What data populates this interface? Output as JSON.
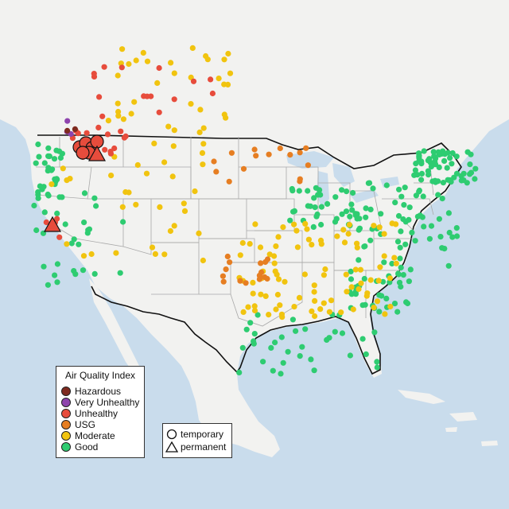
{
  "legend": {
    "title": "Air Quality Index",
    "categories": [
      {
        "label": "Hazardous",
        "color": "#7e2a1f"
      },
      {
        "label": "Very Unhealthy",
        "color": "#8e44ad"
      },
      {
        "label": "Unhealthy",
        "color": "#e74c3c"
      },
      {
        "label": "USG",
        "color": "#e67e22"
      },
      {
        "label": "Moderate",
        "color": "#f1c40f"
      },
      {
        "label": "Good",
        "color": "#2ecc71"
      }
    ]
  },
  "shape_legend": {
    "temporary": "temporary",
    "permanent": "permanent"
  },
  "colors": {
    "water": "#c9dcec",
    "land": "#f2f2f0",
    "state_border": "#a9a9a9",
    "country_border": "#111111",
    "no_data": "#bbbbbb"
  },
  "monitor_groups": [
    {
      "category": "Good",
      "region": "West Coast",
      "count": 60
    },
    {
      "category": "Good",
      "region": "Northeast / Mid-Atlantic",
      "count": 120
    },
    {
      "category": "Good",
      "region": "Southeast / Gulf Coast",
      "count": 70
    },
    {
      "category": "Good",
      "region": "Great Lakes",
      "count": 40
    },
    {
      "category": "Moderate",
      "region": "Interior West",
      "count": 70
    },
    {
      "category": "Moderate",
      "region": "Midwest / South",
      "count": 90
    },
    {
      "category": "USG",
      "region": "Upper Midwest / Plains",
      "count": 30
    },
    {
      "category": "Unhealthy",
      "region": "Northern Rockies / Montana",
      "count": 30
    },
    {
      "category": "Unhealthy",
      "region": "Northern California",
      "count": 5
    },
    {
      "category": "Very Unhealthy",
      "region": "Northern Idaho",
      "count": 3
    },
    {
      "category": "Hazardous",
      "region": "Northern Idaho",
      "count": 2
    }
  ]
}
